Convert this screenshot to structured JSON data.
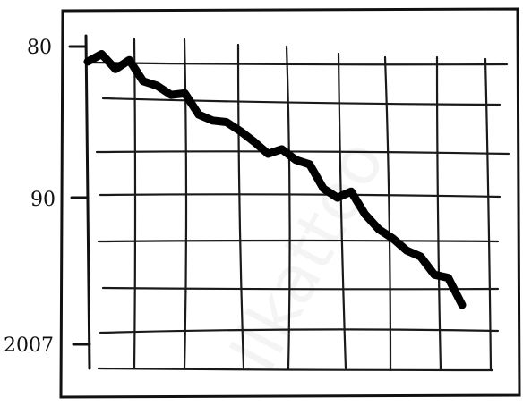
{
  "chart_data": {
    "type": "line",
    "title": "",
    "xlabel": "",
    "ylabel": "",
    "y_tick_labels": [
      "80",
      "90",
      "2007"
    ],
    "grid": true,
    "legend": "none",
    "series": [
      {
        "values": [
          81,
          80.5,
          81.5,
          80.9,
          82.3,
          82.6,
          83.2,
          83.1,
          84.5,
          84.9,
          85.0,
          85.6,
          86.3,
          87.1,
          86.8,
          87.5,
          87.8,
          89.4,
          90.0,
          89.6,
          91.1,
          92.1,
          92.7,
          93.5,
          93.9,
          95.1,
          95.3,
          97.1
        ]
      }
    ]
  },
  "watermark": "Ilkattoo",
  "colors": {
    "line": "#000000",
    "grid": "#1a1a1a",
    "background": "#ffffff"
  }
}
